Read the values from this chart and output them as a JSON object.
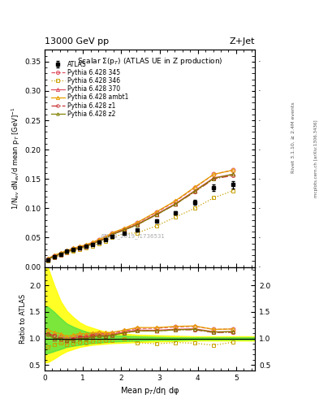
{
  "title_top": "13000 GeV pp",
  "title_right": "Z+Jet",
  "ylabel_main": "1/N$_{ev}$ dN$_{ev}$/d mean p$_{T}$ [GeV]$^{-1}$",
  "ylabel_ratio": "Ratio to ATLAS",
  "xlabel": "Mean p$_{T}$/dη dφ",
  "subtitle": "Scalar Σ(p$_{T}$) (ATLAS UE in Z production)",
  "watermark": "ATLAS_2019_I1736531",
  "right_label1": "Rivet 3.1.10, ≥ 2.4M events",
  "right_label2": "mcplots.cern.ch [arXiv:1306.3436]",
  "xlim": [
    0,
    5.5
  ],
  "ylim_main": [
    0,
    0.37
  ],
  "ylim_ratio": [
    0.4,
    2.35
  ],
  "atlas_x": [
    0.08,
    0.25,
    0.42,
    0.58,
    0.75,
    0.92,
    1.08,
    1.25,
    1.42,
    1.58,
    1.75,
    2.08,
    2.42,
    2.92,
    3.42,
    3.92,
    4.42,
    4.92
  ],
  "atlas_y": [
    0.012,
    0.018,
    0.022,
    0.027,
    0.03,
    0.032,
    0.035,
    0.038,
    0.042,
    0.046,
    0.052,
    0.057,
    0.063,
    0.078,
    0.092,
    0.11,
    0.135,
    0.14
  ],
  "atlas_yerr": [
    0.0008,
    0.001,
    0.001,
    0.001,
    0.001,
    0.001,
    0.001,
    0.001,
    0.001,
    0.001,
    0.002,
    0.002,
    0.002,
    0.003,
    0.003,
    0.004,
    0.005,
    0.006
  ],
  "p345_x": [
    0.08,
    0.25,
    0.42,
    0.58,
    0.75,
    0.92,
    1.08,
    1.25,
    1.42,
    1.58,
    1.75,
    2.08,
    2.42,
    2.92,
    3.42,
    3.92,
    4.42,
    4.92
  ],
  "p345_y": [
    0.013,
    0.019,
    0.023,
    0.027,
    0.031,
    0.034,
    0.037,
    0.041,
    0.046,
    0.05,
    0.057,
    0.065,
    0.075,
    0.093,
    0.112,
    0.135,
    0.158,
    0.165
  ],
  "p346_x": [
    0.08,
    0.25,
    0.42,
    0.58,
    0.75,
    0.92,
    1.08,
    1.25,
    1.42,
    1.58,
    1.75,
    2.08,
    2.42,
    2.92,
    3.42,
    3.92,
    4.42,
    4.92
  ],
  "p346_y": [
    0.01,
    0.016,
    0.02,
    0.024,
    0.027,
    0.03,
    0.032,
    0.036,
    0.04,
    0.044,
    0.05,
    0.057,
    0.058,
    0.07,
    0.085,
    0.1,
    0.118,
    0.13
  ],
  "p370_x": [
    0.08,
    0.25,
    0.42,
    0.58,
    0.75,
    0.92,
    1.08,
    1.25,
    1.42,
    1.58,
    1.75,
    2.08,
    2.42,
    2.92,
    3.42,
    3.92,
    4.42,
    4.92
  ],
  "p370_y": [
    0.013,
    0.018,
    0.022,
    0.026,
    0.03,
    0.033,
    0.036,
    0.04,
    0.045,
    0.049,
    0.056,
    0.064,
    0.073,
    0.09,
    0.108,
    0.13,
    0.152,
    0.158
  ],
  "pambt1_x": [
    0.08,
    0.25,
    0.42,
    0.58,
    0.75,
    0.92,
    1.08,
    1.25,
    1.42,
    1.58,
    1.75,
    2.08,
    2.42,
    2.92,
    3.42,
    3.92,
    4.42,
    4.92
  ],
  "pambt1_y": [
    0.014,
    0.02,
    0.024,
    0.028,
    0.032,
    0.035,
    0.038,
    0.042,
    0.047,
    0.051,
    0.058,
    0.066,
    0.076,
    0.094,
    0.113,
    0.136,
    0.158,
    0.165
  ],
  "pz1_x": [
    0.08,
    0.25,
    0.42,
    0.58,
    0.75,
    0.92,
    1.08,
    1.25,
    1.42,
    1.58,
    1.75,
    2.08,
    2.42,
    2.92,
    3.42,
    3.92,
    4.42,
    4.92
  ],
  "pz1_y": [
    0.013,
    0.019,
    0.022,
    0.026,
    0.03,
    0.033,
    0.036,
    0.04,
    0.044,
    0.048,
    0.055,
    0.063,
    0.072,
    0.089,
    0.107,
    0.128,
    0.15,
    0.156
  ],
  "pz2_x": [
    0.08,
    0.25,
    0.42,
    0.58,
    0.75,
    0.92,
    1.08,
    1.25,
    1.42,
    1.58,
    1.75,
    2.08,
    2.42,
    2.92,
    3.42,
    3.92,
    4.42,
    4.92
  ],
  "pz2_y": [
    0.013,
    0.018,
    0.022,
    0.026,
    0.029,
    0.032,
    0.035,
    0.039,
    0.044,
    0.048,
    0.055,
    0.063,
    0.072,
    0.089,
    0.107,
    0.129,
    0.151,
    0.158
  ],
  "color_345": "#e05060",
  "color_346": "#c8a000",
  "color_370": "#e05060",
  "color_ambt1": "#e8a000",
  "color_z1": "#c83030",
  "color_z2": "#808000",
  "band_yellow_x": [
    0.0,
    0.08,
    0.25,
    0.42,
    0.58,
    0.75,
    0.92,
    1.08,
    1.25,
    1.42,
    1.58,
    1.75,
    2.08,
    2.42,
    2.92,
    3.42,
    3.92,
    4.42,
    4.92,
    5.5
  ],
  "band_yellow_low": [
    0.55,
    0.55,
    0.62,
    0.7,
    0.76,
    0.8,
    0.84,
    0.86,
    0.88,
    0.89,
    0.9,
    0.91,
    0.92,
    0.93,
    0.94,
    0.95,
    0.96,
    0.96,
    0.96,
    0.96
  ],
  "band_yellow_high": [
    2.35,
    2.35,
    2.0,
    1.7,
    1.52,
    1.4,
    1.3,
    1.24,
    1.2,
    1.16,
    1.13,
    1.11,
    1.09,
    1.07,
    1.06,
    1.05,
    1.04,
    1.04,
    1.04,
    1.04
  ],
  "band_green_x": [
    0.0,
    0.08,
    0.25,
    0.42,
    0.58,
    0.75,
    0.92,
    1.08,
    1.25,
    1.42,
    1.58,
    1.75,
    2.08,
    2.42,
    2.92,
    3.42,
    3.92,
    4.42,
    4.92,
    5.5
  ],
  "band_green_low": [
    0.72,
    0.72,
    0.76,
    0.8,
    0.84,
    0.86,
    0.88,
    0.9,
    0.91,
    0.92,
    0.93,
    0.94,
    0.95,
    0.96,
    0.97,
    0.97,
    0.98,
    0.98,
    0.98,
    0.98
  ],
  "band_green_high": [
    1.6,
    1.6,
    1.5,
    1.38,
    1.28,
    1.22,
    1.17,
    1.13,
    1.1,
    1.08,
    1.07,
    1.06,
    1.05,
    1.04,
    1.03,
    1.02,
    1.02,
    1.02,
    1.02,
    1.02
  ]
}
